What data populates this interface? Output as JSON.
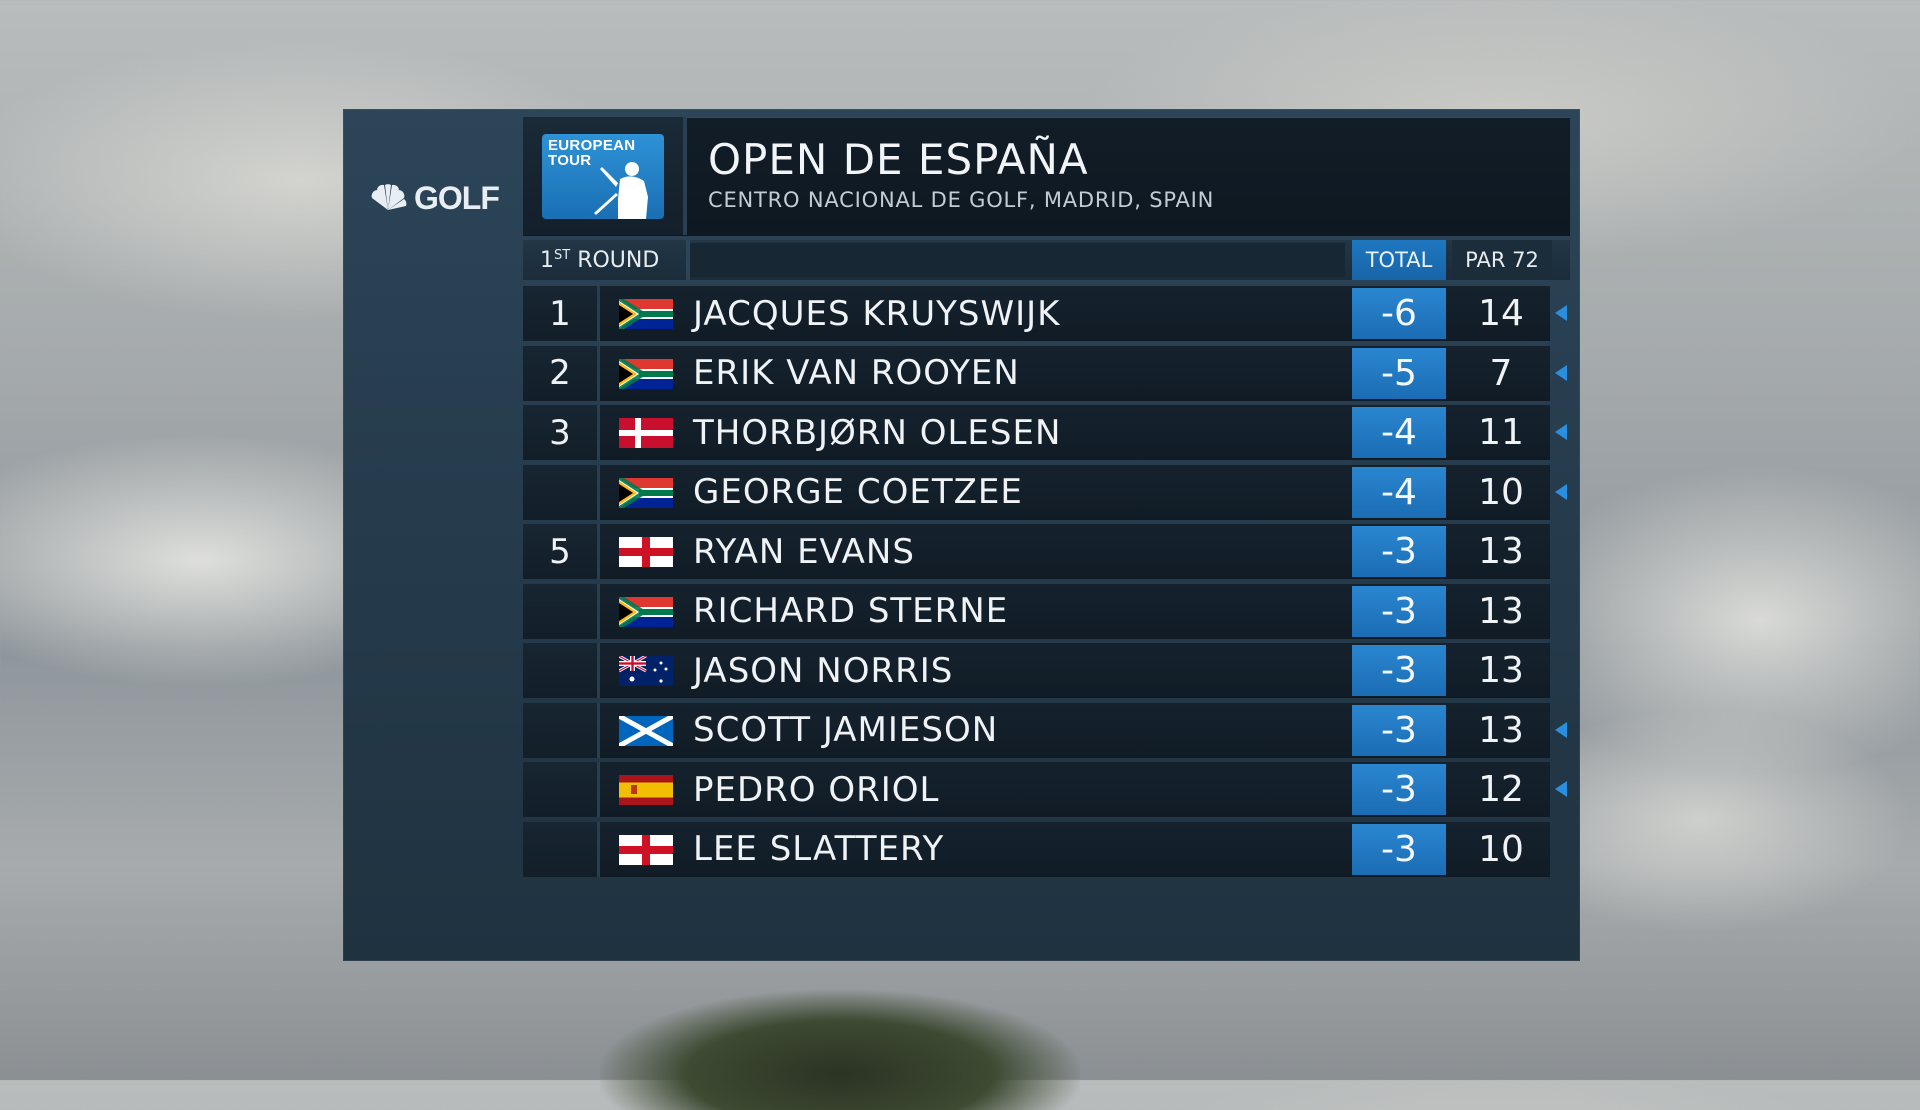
{
  "broadcaster": {
    "logo_text": "GOLF"
  },
  "tour_logo": {
    "line1": "EUROPEAN",
    "line2": "TOUR"
  },
  "event": {
    "title": "OPEN DE ESPAÑA",
    "venue": "CENTRO NACIONAL DE GOLF, MADRID, SPAIN"
  },
  "round": {
    "number": "1",
    "suffix": "ST",
    "label": "ROUND"
  },
  "columns": {
    "total": "TOTAL",
    "par": "PAR 72"
  },
  "colors": {
    "accent_blue": "#1f77c0",
    "panel": "#263c4d",
    "row_bg": "#121d27"
  },
  "leaderboard": [
    {
      "pos": "1",
      "flag": "south-africa",
      "name": "JACQUES KRUYSWIJK",
      "total": "-6",
      "thru": "14",
      "on_course": true
    },
    {
      "pos": "2",
      "flag": "south-africa",
      "name": "ERIK VAN ROOYEN",
      "total": "-5",
      "thru": "7",
      "on_course": true
    },
    {
      "pos": "3",
      "flag": "denmark",
      "name": "THORBJØRN OLESEN",
      "total": "-4",
      "thru": "11",
      "on_course": true
    },
    {
      "pos": "",
      "flag": "south-africa",
      "name": "GEORGE COETZEE",
      "total": "-4",
      "thru": "10",
      "on_course": true
    },
    {
      "pos": "5",
      "flag": "england",
      "name": "RYAN EVANS",
      "total": "-3",
      "thru": "13",
      "on_course": false
    },
    {
      "pos": "",
      "flag": "south-africa",
      "name": "RICHARD STERNE",
      "total": "-3",
      "thru": "13",
      "on_course": false
    },
    {
      "pos": "",
      "flag": "australia",
      "name": "JASON NORRIS",
      "total": "-3",
      "thru": "13",
      "on_course": false
    },
    {
      "pos": "",
      "flag": "scotland",
      "name": "SCOTT JAMIESON",
      "total": "-3",
      "thru": "13",
      "on_course": true
    },
    {
      "pos": "",
      "flag": "spain",
      "name": "PEDRO ORIOL",
      "total": "-3",
      "thru": "12",
      "on_course": true
    },
    {
      "pos": "",
      "flag": "england",
      "name": "LEE SLATTERY",
      "total": "-3",
      "thru": "10",
      "on_course": false
    }
  ]
}
